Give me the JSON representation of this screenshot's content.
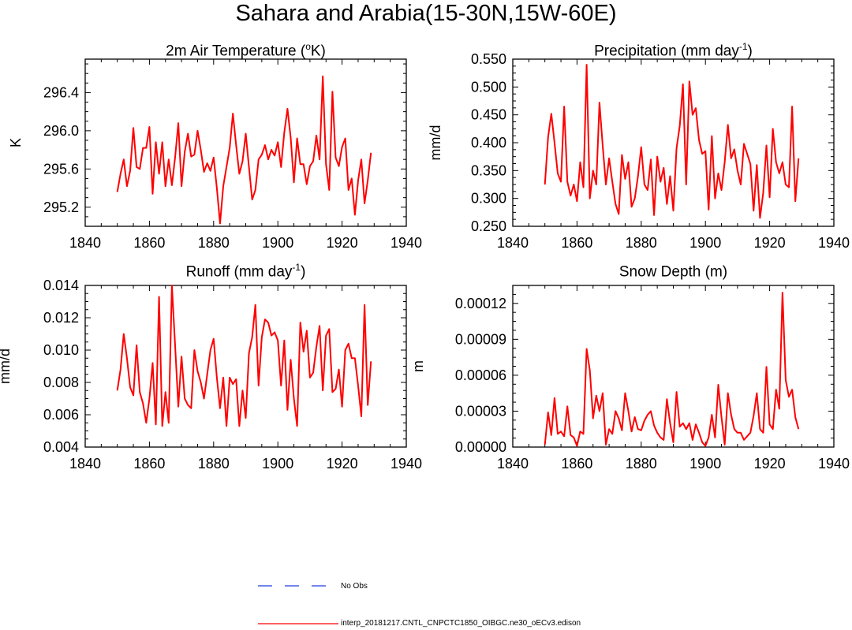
{
  "title": "Sahara and Arabia(15-30N,15W-60E)",
  "colors": {
    "series": "#ff0000",
    "obs": "#1f3fe0",
    "axis": "#000000"
  },
  "legend": {
    "obs_label": "No Obs",
    "model_label": "interp_20181217.CNTL_CNPCTC1850_OIBGC.ne30_oECv3.edison"
  },
  "panels": {
    "temp": {
      "title_prefix": "2m Air Temperature (",
      "title_sup": "o",
      "title_suffix": "K)"
    },
    "precip": {
      "title_prefix": "Precipitation (mm day",
      "title_sup": "-1",
      "title_suffix": ")"
    },
    "runoff": {
      "title_prefix": "Runoff (mm day",
      "title_sup": "-1",
      "title_suffix": ")"
    },
    "snow": {
      "title_prefix": "Snow Depth (m)",
      "title_sup": "",
      "title_suffix": ""
    }
  },
  "chart_data": [
    {
      "id": "temp",
      "type": "line",
      "title": "2m Air Temperature (oK)",
      "xlabel": "",
      "ylabel": "K",
      "xlim": [
        1840,
        1940
      ],
      "ylim": [
        295.0,
        296.75
      ],
      "xticks": [
        1840,
        1860,
        1880,
        1900,
        1920,
        1940
      ],
      "xtick_labels": [
        "1840",
        "1860",
        "1880",
        "1900",
        "1920",
        "1940"
      ],
      "yticks": [
        295.2,
        295.6,
        296.0,
        296.4
      ],
      "ytick_labels": [
        "295.2",
        "295.6",
        "296.0",
        "296.4"
      ],
      "x_start": 1850,
      "series": [
        {
          "name": "interp_20181217.CNTL_CNPCTC1850_OIBGC.ne30_oECv3.edison",
          "values": [
            295.36,
            295.55,
            295.7,
            295.42,
            295.58,
            296.03,
            295.62,
            295.6,
            295.82,
            295.82,
            296.04,
            295.34,
            295.88,
            295.55,
            295.88,
            295.42,
            295.7,
            295.43,
            295.72,
            296.08,
            295.42,
            295.78,
            295.97,
            295.73,
            295.75,
            296.0,
            295.8,
            295.57,
            295.66,
            295.58,
            295.72,
            295.4,
            295.03,
            295.42,
            295.62,
            295.82,
            296.18,
            295.85,
            295.55,
            295.68,
            295.97,
            295.62,
            295.28,
            295.38,
            295.7,
            295.75,
            295.85,
            295.7,
            295.8,
            295.74,
            295.88,
            295.62,
            295.98,
            296.23,
            295.93,
            295.46,
            295.92,
            295.65,
            295.65,
            295.44,
            295.63,
            295.68,
            295.95,
            295.7,
            296.57,
            295.65,
            295.38,
            296.41,
            295.72,
            295.63,
            295.83,
            295.92,
            295.38,
            295.5,
            295.12,
            295.48,
            295.7,
            295.24,
            295.48,
            295.77
          ]
        }
      ]
    },
    {
      "id": "precip",
      "type": "line",
      "title": "Precipitation (mm day-1)",
      "xlabel": "",
      "ylabel": "mm/d",
      "xlim": [
        1840,
        1940
      ],
      "ylim": [
        0.25,
        0.55
      ],
      "xticks": [
        1840,
        1860,
        1880,
        1900,
        1920,
        1940
      ],
      "xtick_labels": [
        "1840",
        "1860",
        "1880",
        "1900",
        "1920",
        "1940"
      ],
      "yticks": [
        0.25,
        0.3,
        0.35,
        0.4,
        0.45,
        0.5,
        0.55
      ],
      "ytick_labels": [
        "0.250",
        "0.300",
        "0.350",
        "0.400",
        "0.450",
        "0.500",
        "0.550"
      ],
      "x_start": 1850,
      "series": [
        {
          "name": "interp_20181217.CNTL_CNPCTC1850_OIBGC.ne30_oECv3.edison",
          "values": [
            0.325,
            0.41,
            0.452,
            0.4,
            0.345,
            0.33,
            0.465,
            0.33,
            0.305,
            0.325,
            0.295,
            0.365,
            0.32,
            0.54,
            0.3,
            0.35,
            0.325,
            0.472,
            0.395,
            0.325,
            0.372,
            0.33,
            0.29,
            0.272,
            0.378,
            0.335,
            0.365,
            0.285,
            0.3,
            0.34,
            0.392,
            0.325,
            0.315,
            0.37,
            0.27,
            0.375,
            0.33,
            0.355,
            0.29,
            0.34,
            0.278,
            0.39,
            0.43,
            0.505,
            0.325,
            0.51,
            0.45,
            0.462,
            0.405,
            0.38,
            0.385,
            0.28,
            0.412,
            0.3,
            0.345,
            0.315,
            0.365,
            0.432,
            0.372,
            0.388,
            0.35,
            0.325,
            0.398,
            0.38,
            0.362,
            0.278,
            0.36,
            0.265,
            0.31,
            0.395,
            0.302,
            0.425,
            0.365,
            0.345,
            0.365,
            0.325,
            0.32,
            0.465,
            0.295,
            0.372
          ]
        }
      ]
    },
    {
      "id": "runoff",
      "type": "line",
      "title": "Runoff (mm day-1)",
      "xlabel": "",
      "ylabel": "mm/d",
      "xlim": [
        1840,
        1940
      ],
      "ylim": [
        0.004,
        0.014
      ],
      "xticks": [
        1840,
        1860,
        1880,
        1900,
        1920,
        1940
      ],
      "xtick_labels": [
        "1840",
        "1860",
        "1880",
        "1900",
        "1920",
        "1940"
      ],
      "yticks": [
        0.004,
        0.006,
        0.008,
        0.01,
        0.012,
        0.014
      ],
      "ytick_labels": [
        "0.004",
        "0.006",
        "0.008",
        "0.010",
        "0.012",
        "0.014"
      ],
      "x_start": 1850,
      "series": [
        {
          "name": "interp_20181217.CNTL_CNPCTC1850_OIBGC.ne30_oECv3.edison",
          "values": [
            0.0075,
            0.0088,
            0.011,
            0.0095,
            0.0077,
            0.0072,
            0.0103,
            0.0074,
            0.0067,
            0.0055,
            0.007,
            0.0092,
            0.0054,
            0.0133,
            0.0053,
            0.0074,
            0.0055,
            0.014,
            0.0103,
            0.0065,
            0.0096,
            0.007,
            0.0066,
            0.0064,
            0.01,
            0.0087,
            0.008,
            0.007,
            0.0085,
            0.01,
            0.0107,
            0.0083,
            0.0064,
            0.0083,
            0.0053,
            0.0083,
            0.0079,
            0.0082,
            0.0053,
            0.0075,
            0.0058,
            0.0098,
            0.0108,
            0.0128,
            0.0078,
            0.0108,
            0.0119,
            0.0117,
            0.0109,
            0.0111,
            0.0106,
            0.0078,
            0.0106,
            0.0063,
            0.0094,
            0.007,
            0.0053,
            0.0117,
            0.0099,
            0.0112,
            0.0083,
            0.0086,
            0.0102,
            0.0115,
            0.0075,
            0.0109,
            0.0113,
            0.0074,
            0.0076,
            0.0088,
            0.0065,
            0.01,
            0.0104,
            0.0095,
            0.0095,
            0.0078,
            0.0059,
            0.0128,
            0.0066,
            0.0093
          ]
        }
      ]
    },
    {
      "id": "snow",
      "type": "line",
      "title": "Snow Depth (m)",
      "xlabel": "",
      "ylabel": "m",
      "xlim": [
        1840,
        1940
      ],
      "ylim": [
        0.0,
        0.000135
      ],
      "xticks": [
        1840,
        1860,
        1880,
        1900,
        1920,
        1940
      ],
      "xtick_labels": [
        "1840",
        "1860",
        "1880",
        "1900",
        "1920",
        "1940"
      ],
      "yticks": [
        0.0,
        3e-05,
        6e-05,
        9e-05,
        0.00012
      ],
      "ytick_labels": [
        "0.00000",
        "0.00003",
        "0.00006",
        "0.00009",
        "0.00012"
      ],
      "x_start": 1850,
      "series": [
        {
          "name": "interp_20181217.CNTL_CNPCTC1850_OIBGC.ne30_oECv3.edison",
          "values": [
            2e-06,
            2.9e-05,
            1e-05,
            4.1e-05,
            1.1e-05,
            1.3e-05,
            9e-06,
            3.4e-05,
            1e-05,
            8e-06,
            1e-06,
            1.3e-05,
            1.1e-05,
            8.2e-05,
            6.4e-05,
            2.4e-05,
            4.3e-05,
            3e-05,
            4.5e-05,
            2e-06,
            1.5e-05,
            1.1e-05,
            3e-05,
            2.4e-05,
            1.4e-05,
            4.5e-05,
            3e-05,
            1.3e-05,
            2.5e-05,
            1.5e-05,
            1.4e-05,
            2.2e-05,
            2.7e-05,
            3e-05,
            1.8e-05,
            1.2e-05,
            8e-06,
            6e-06,
            4e-05,
            2e-05,
            4e-06,
            4.6e-05,
            1.7e-05,
            2e-05,
            1.5e-05,
            2e-05,
            6e-06,
            1.9e-05,
            1.2e-05,
            4e-06,
            1e-06,
            8e-06,
            2.7e-05,
            8e-06,
            5.2e-05,
            2.5e-05,
            2e-06,
            4.5e-05,
            2.7e-05,
            1.5e-05,
            1.2e-05,
            1.2e-05,
            6e-06,
            9e-06,
            1.2e-05,
            2.6e-05,
            4.5e-05,
            1.5e-05,
            1.2e-05,
            6.7e-05,
            1.9e-05,
            1.5e-05,
            4.8e-05,
            3.2e-05,
            0.000129,
            5.6e-05,
            4.2e-05,
            4.8e-05,
            2.5e-05,
            1.5e-05
          ]
        }
      ]
    }
  ]
}
